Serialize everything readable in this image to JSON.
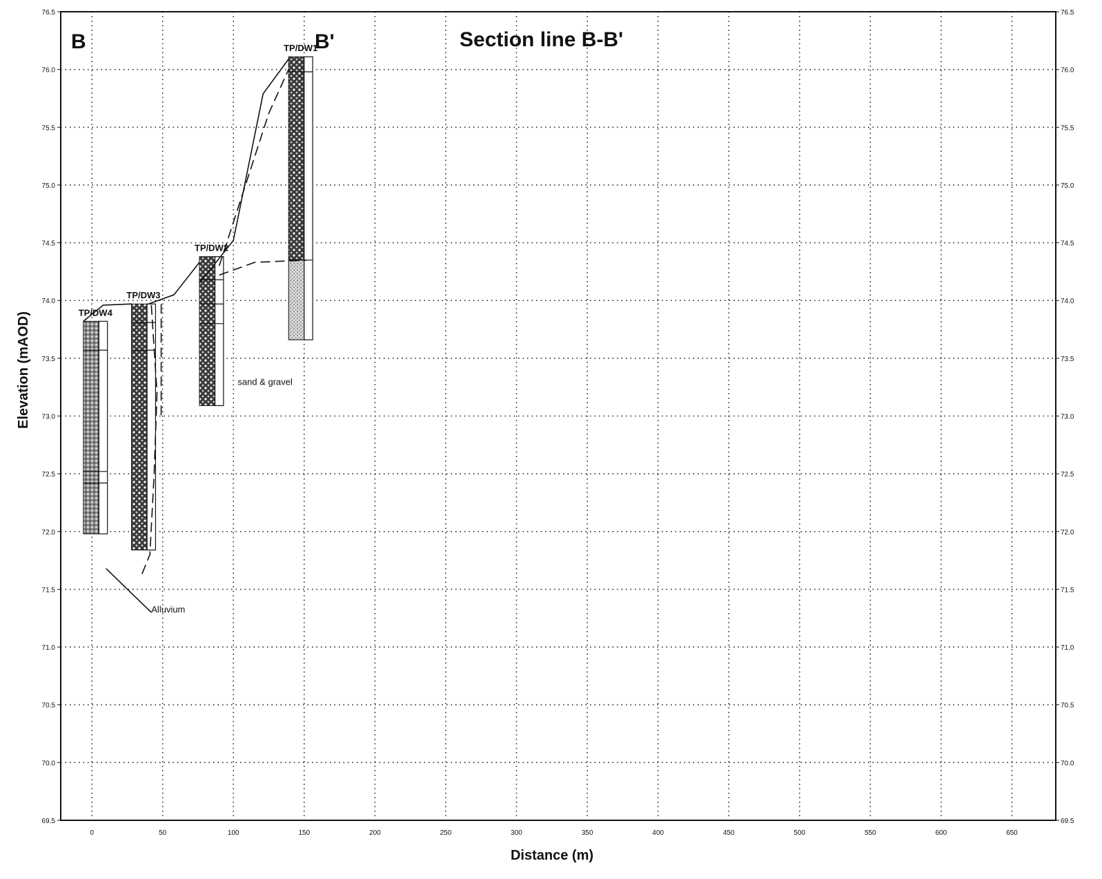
{
  "title": "Section line B-B'",
  "section_start_label": "B",
  "section_end_label": "B'",
  "chart_data": {
    "type": "cross-section",
    "title": "Section line B-B'",
    "xlabel": "Distance (m)",
    "ylabel": "Elevation (mAOD)",
    "xlim": [
      -22,
      681
    ],
    "ylim": [
      69.5,
      76.5
    ],
    "x_ticks": [
      {
        "value": 0,
        "label": "0"
      },
      {
        "value": 50,
        "label": "50"
      },
      {
        "value": 100,
        "label": "100"
      },
      {
        "value": 150,
        "label": "150"
      },
      {
        "value": 200,
        "label": "200"
      },
      {
        "value": 250,
        "label": "250"
      },
      {
        "value": 300,
        "label": "300"
      },
      {
        "value": 350,
        "label": "350"
      },
      {
        "value": 400,
        "label": "400"
      },
      {
        "value": 450,
        "label": "450"
      },
      {
        "value": 500,
        "label": "500"
      },
      {
        "value": 550,
        "label": "550"
      },
      {
        "value": 600,
        "label": "600"
      },
      {
        "value": 650,
        "label": "650"
      }
    ],
    "y_ticks": [
      {
        "value": 76.5,
        "label": "76.5"
      },
      {
        "value": 76.0,
        "label": "76.0"
      },
      {
        "value": 75.5,
        "label": "75.5"
      },
      {
        "value": 75.0,
        "label": "75.0"
      },
      {
        "value": 74.5,
        "label": "74.5"
      },
      {
        "value": 74.0,
        "label": "74.0"
      },
      {
        "value": 73.5,
        "label": "73.5"
      },
      {
        "value": 73.0,
        "label": "73.0"
      },
      {
        "value": 72.5,
        "label": "72.5"
      },
      {
        "value": 72.0,
        "label": "72.0"
      },
      {
        "value": 71.5,
        "label": "71.5"
      },
      {
        "value": 71.0,
        "label": "71.0"
      },
      {
        "value": 70.5,
        "label": "70.5"
      },
      {
        "value": 70.0,
        "label": "70.0"
      },
      {
        "value": 69.5,
        "label": "69.5"
      }
    ],
    "grid": true,
    "borehole_columns": [
      {
        "name": "TP/DW4",
        "x": -6,
        "top": 73.82,
        "bottom": 71.98,
        "fill": "dense-gravel",
        "breaks": [
          73.57,
          72.52,
          72.42
        ]
      },
      {
        "name": "TP/DW3",
        "x": 28,
        "top": 73.97,
        "bottom": 71.84,
        "fill": "coarse-gravel",
        "breaks": [
          73.81,
          73.57
        ]
      },
      {
        "name": "TP/DW2",
        "x": 76,
        "top": 74.38,
        "bottom": 73.09,
        "fill": "coarse-gravel",
        "breaks": [
          74.18,
          73.97,
          73.8
        ]
      },
      {
        "name": "TP/DW1",
        "x": 139,
        "top": 76.11,
        "bottom": 73.66,
        "fill": "mixed",
        "breaks": [
          75.98,
          74.35
        ]
      }
    ],
    "annotations": [
      {
        "text": "sand & gravel",
        "x": 103,
        "y": 73.27
      },
      {
        "text": "Alluvium",
        "x": 42,
        "y": 71.3
      }
    ],
    "interpretation_lines": [
      {
        "style": "solid",
        "points": [
          [
            -6,
            73.82
          ],
          [
            8,
            73.96
          ],
          [
            28,
            73.97
          ]
        ]
      },
      {
        "style": "solid",
        "points": [
          [
            40,
            73.97
          ],
          [
            58,
            74.05
          ],
          [
            76,
            74.33
          ]
        ]
      },
      {
        "style": "solid",
        "points": [
          [
            76,
            74.15
          ],
          [
            100,
            74.52
          ],
          [
            121,
            75.79
          ],
          [
            139,
            76.09
          ]
        ]
      },
      {
        "style": "dashed",
        "points": [
          [
            90,
            74.3
          ],
          [
            125,
            75.62
          ],
          [
            139,
            76.0
          ]
        ]
      },
      {
        "style": "dashed",
        "points": [
          [
            90,
            74.22
          ],
          [
            115,
            74.33
          ],
          [
            152,
            74.35
          ]
        ]
      },
      {
        "style": "dashed",
        "points": [
          [
            42,
            73.96
          ],
          [
            46,
            73.2
          ],
          [
            44,
            72.5
          ],
          [
            41,
            71.8
          ],
          [
            35,
            71.62
          ]
        ]
      },
      {
        "style": "dashed",
        "points": [
          [
            49,
            73.97
          ],
          [
            49,
            73.0
          ]
        ]
      },
      {
        "style": "solid",
        "points": [
          [
            10,
            71.68
          ],
          [
            42,
            71.3
          ]
        ]
      }
    ]
  }
}
